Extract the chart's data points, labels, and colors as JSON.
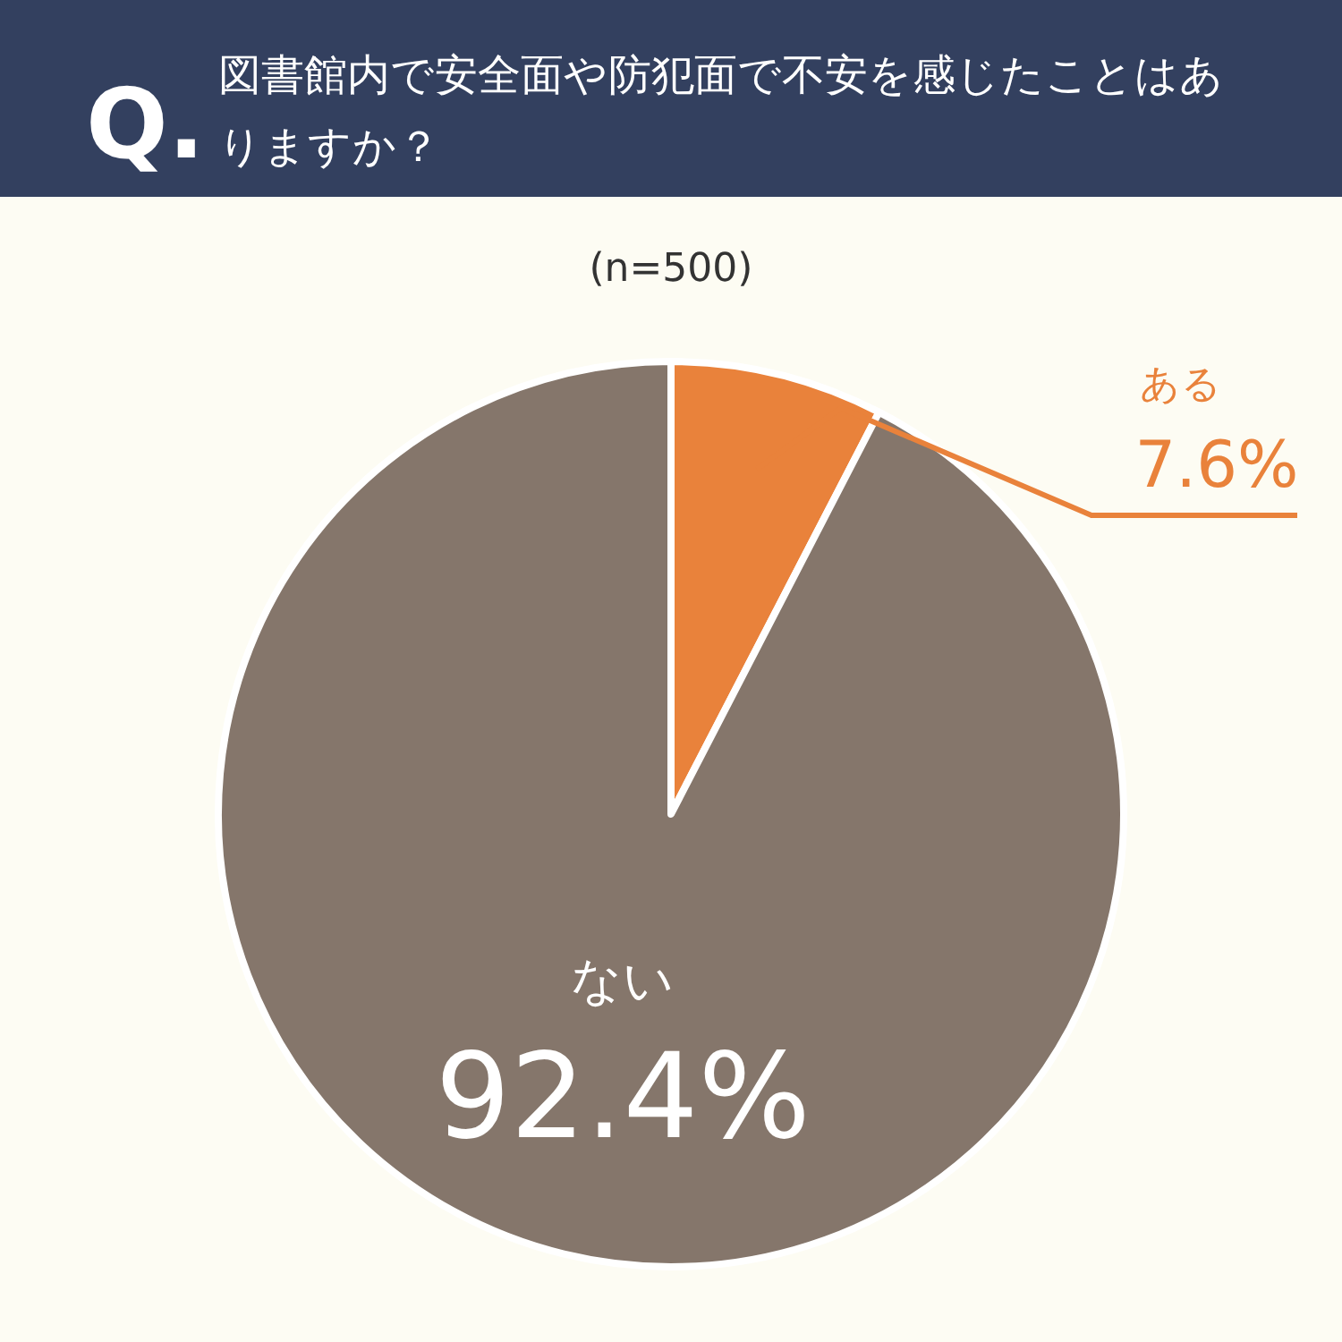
{
  "chart_data": {
    "type": "pie",
    "title": "図書館内で安全面や防犯面で不安を感じたことはありますか？",
    "subtitle": "(n=500)",
    "annotations": [
      "Q."
    ],
    "categories": [
      "ある",
      "ない"
    ],
    "values": [
      7.6,
      92.4
    ],
    "colors": [
      "#e9823b",
      "#85766b"
    ],
    "value_labels": [
      "7.6%",
      "92.4%"
    ]
  }
}
